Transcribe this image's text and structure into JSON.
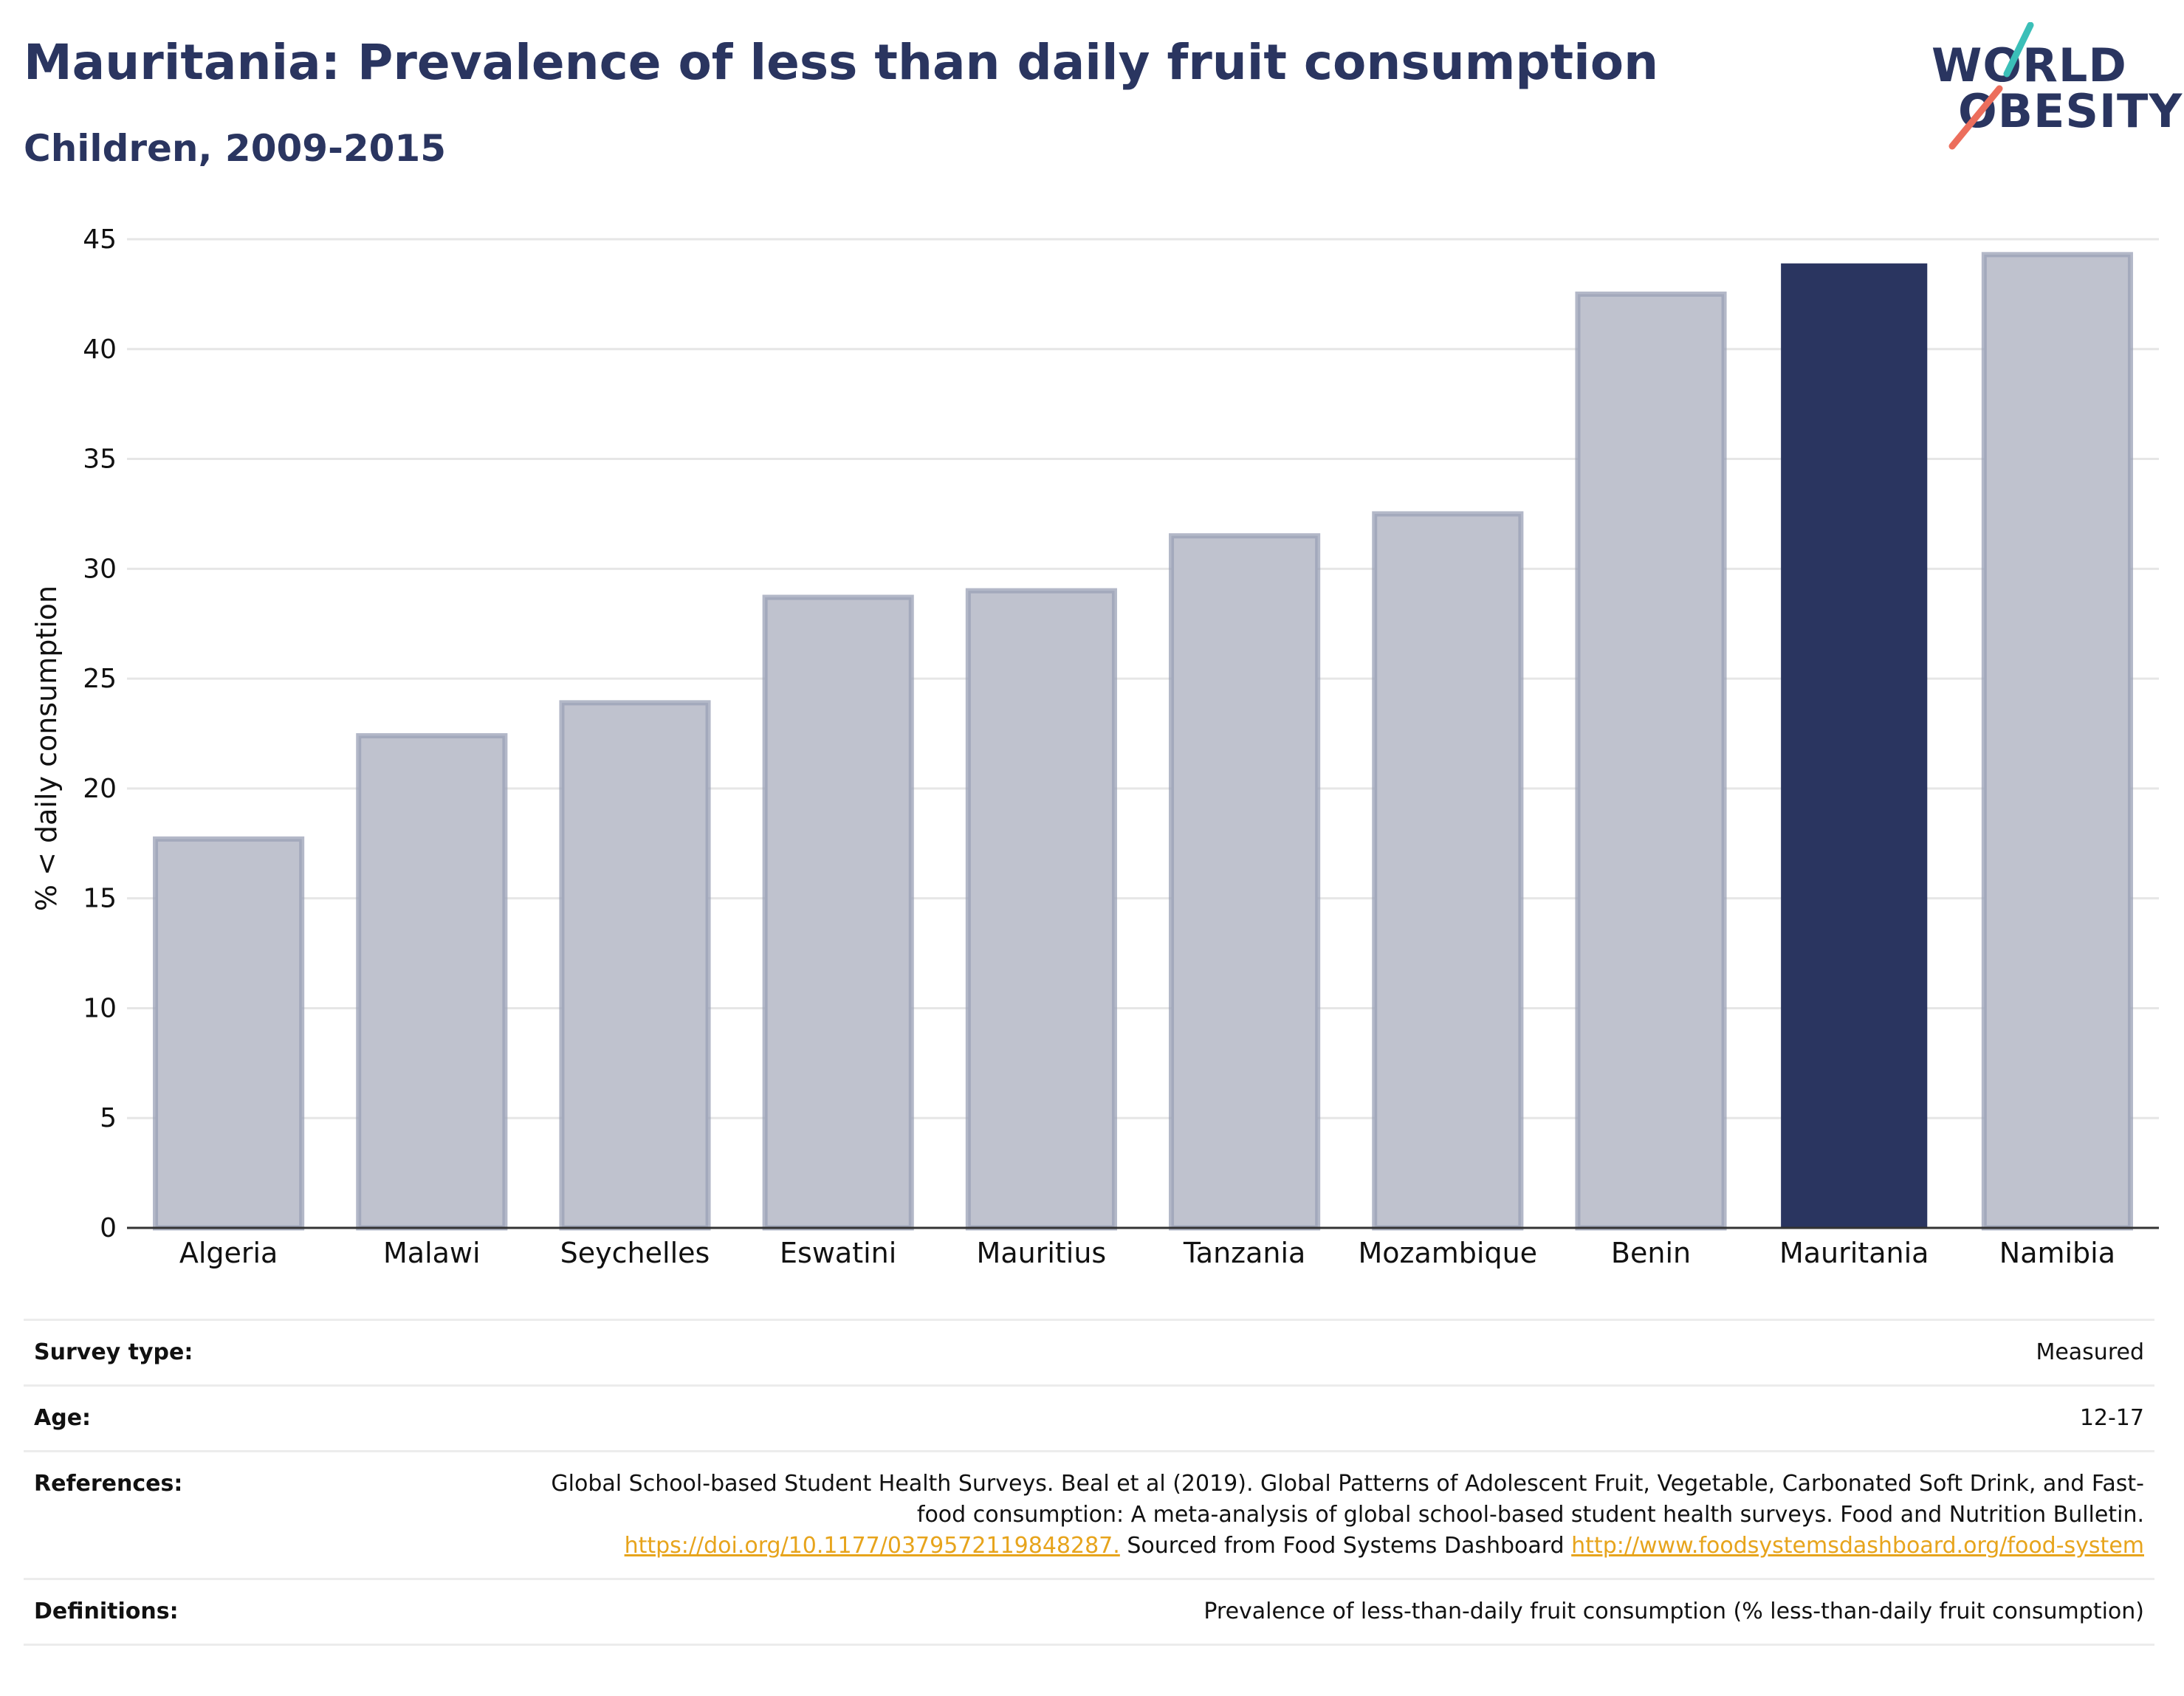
{
  "header": {
    "title": "Mauritania: Prevalence of less than daily fruit consumption",
    "subtitle": "Children, 2009-2015",
    "logo_line1": "WORLD",
    "logo_line2": "OBESITY"
  },
  "colors": {
    "highlight": "#2a3560",
    "bar_fill": "#bfc2ce",
    "bar_stroke": "#9aa0b6",
    "grid": "#e6e6e6",
    "link": "#e7a41c",
    "logo_teal": "#3bbfb8",
    "logo_coral": "#ec6e5c"
  },
  "chart_data": {
    "type": "bar",
    "title": "Mauritania: Prevalence of less than daily fruit consumption",
    "subtitle": "Children, 2009-2015",
    "xlabel": "",
    "ylabel": "% < daily consumption",
    "ylim": [
      0,
      45
    ],
    "yticks": [
      0,
      5,
      10,
      15,
      20,
      25,
      30,
      35,
      40,
      45
    ],
    "grid": true,
    "categories": [
      "Algeria",
      "Malawi",
      "Seychelles",
      "Eswatini",
      "Mauritius",
      "Tanzania",
      "Mozambique",
      "Benin",
      "Mauritania",
      "Namibia"
    ],
    "values": [
      17.7,
      22.4,
      23.9,
      28.7,
      29.0,
      31.5,
      32.5,
      42.5,
      43.9,
      44.3
    ],
    "highlight": "Mauritania"
  },
  "meta": {
    "survey_type_label": "Survey type:",
    "survey_type_value": "Measured",
    "age_label": "Age:",
    "age_value": "12-17",
    "references_label": "References:",
    "references_text1": "Global School-based Student Health Surveys. Beal et al (2019). Global Patterns of Adolescent Fruit, Vegetable, Carbonated Soft Drink, and Fast-food consumption: A meta-analysis of global school-based student health surveys. Food and Nutrition Bulletin.",
    "references_link1": "https://doi.org/10.1177/0379572119848287.",
    "references_text2": "Sourced from Food Systems Dashboard",
    "references_link2": "http://www.foodsystemsdashboard.org/food-system",
    "definitions_label": "Definitions:",
    "definitions_value": "Prevalence of less-than-daily fruit consumption (% less-than-daily fruit consumption)"
  }
}
